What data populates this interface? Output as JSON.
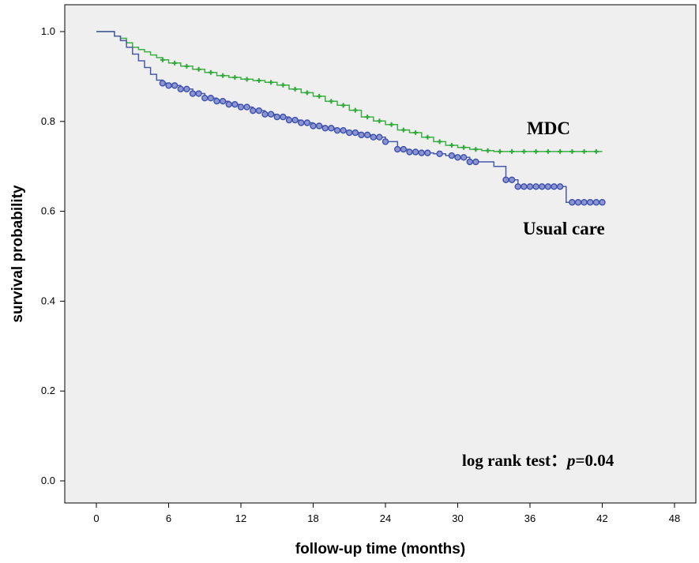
{
  "chart_data": {
    "type": "line",
    "title": "",
    "xlabel": "follow-up time (months)",
    "ylabel": "survival probability",
    "xlim": [
      0,
      48
    ],
    "ylim": [
      0.0,
      1.0
    ],
    "xticks": [
      0,
      6,
      12,
      18,
      24,
      30,
      36,
      42,
      48
    ],
    "yticks": [
      0.0,
      0.2,
      0.4,
      0.6,
      0.8,
      1.0
    ],
    "ytick_labels": [
      "0.0",
      "0.2",
      "0.4",
      "0.6",
      "0.8",
      "1.0"
    ],
    "background": "#efefef",
    "grid": false,
    "annotation": {
      "prefix": "log rank test：",
      "p_symbol": "p",
      "p_value": "=0.04"
    },
    "series": [
      {
        "name": "MDC",
        "color": "#3cb043",
        "marker_color": "#2fa83a",
        "step": true,
        "x": [
          0,
          0.8,
          1.5,
          2,
          2.5,
          3,
          3.5,
          4,
          4.5,
          5,
          5.5,
          6,
          7,
          8,
          9,
          10,
          11,
          12,
          13,
          14,
          15,
          16,
          17,
          18,
          19,
          20,
          21,
          22,
          23,
          24,
          25,
          26,
          27,
          28,
          29,
          30,
          31,
          32,
          33,
          34,
          35,
          36,
          37,
          38,
          39,
          40,
          41,
          42
        ],
        "y": [
          1.0,
          1.0,
          0.99,
          0.985,
          0.975,
          0.965,
          0.96,
          0.955,
          0.948,
          0.942,
          0.937,
          0.93,
          0.923,
          0.916,
          0.909,
          0.902,
          0.898,
          0.894,
          0.891,
          0.887,
          0.881,
          0.872,
          0.864,
          0.856,
          0.845,
          0.836,
          0.825,
          0.81,
          0.801,
          0.793,
          0.781,
          0.775,
          0.765,
          0.755,
          0.747,
          0.742,
          0.738,
          0.735,
          0.733,
          0.733,
          0.733,
          0.733,
          0.733,
          0.733,
          0.733,
          0.733,
          0.733,
          0.733
        ],
        "censor_x": [
          5.5,
          6.5,
          7.5,
          8.5,
          9.5,
          10.5,
          11.5,
          12.5,
          13.5,
          14.5,
          15.5,
          16.5,
          17.5,
          18.5,
          19.5,
          20.5,
          21.5,
          22.5,
          23.5,
          24.5,
          25.5,
          26.5,
          27.5,
          28.5,
          29.5,
          30.5,
          31.5,
          32.5,
          33.5,
          34.5,
          35.5,
          36.5,
          37.5,
          38.5,
          39.5,
          40.5,
          41.5
        ]
      },
      {
        "name": "Usual care",
        "color": "#4a5aa8",
        "marker_color": "#3b4fb0",
        "step": true,
        "x": [
          0,
          0.8,
          1.5,
          2,
          2.5,
          3,
          3.5,
          4,
          4.5,
          5,
          5.5,
          6,
          7,
          8,
          9,
          10,
          11,
          12,
          13,
          14,
          15,
          16,
          17,
          18,
          19,
          20,
          21,
          22,
          23,
          24,
          25,
          26,
          27,
          28,
          29,
          30,
          31,
          32,
          33,
          34,
          35,
          36,
          37,
          38,
          39,
          40,
          41,
          42
        ],
        "y": [
          1.0,
          1.0,
          0.99,
          0.98,
          0.965,
          0.95,
          0.935,
          0.92,
          0.905,
          0.892,
          0.885,
          0.88,
          0.872,
          0.862,
          0.852,
          0.845,
          0.838,
          0.832,
          0.824,
          0.816,
          0.81,
          0.803,
          0.797,
          0.79,
          0.785,
          0.78,
          0.775,
          0.77,
          0.765,
          0.755,
          0.738,
          0.732,
          0.73,
          0.728,
          0.724,
          0.72,
          0.71,
          0.71,
          0.7,
          0.67,
          0.655,
          0.655,
          0.655,
          0.655,
          0.62,
          0.62,
          0.62,
          0.62
        ],
        "censor_x": [
          5.5,
          6,
          6.5,
          7,
          7.5,
          8,
          8.5,
          9,
          9.5,
          10,
          10.5,
          11,
          11.5,
          12,
          12.5,
          13,
          13.5,
          14,
          14.5,
          15,
          15.5,
          16,
          16.5,
          17,
          17.5,
          18,
          18.5,
          19,
          19.5,
          20,
          20.5,
          21,
          21.5,
          22,
          22.5,
          23,
          23.5,
          24,
          25,
          25.5,
          26,
          26.5,
          27,
          27.5,
          28.5,
          29.5,
          30,
          30.5,
          31,
          31.5,
          34,
          34.5,
          35,
          35.5,
          36,
          36.5,
          37,
          37.5,
          38,
          38.5,
          39.5,
          40,
          40.5,
          41,
          41.5,
          42
        ]
      }
    ]
  }
}
